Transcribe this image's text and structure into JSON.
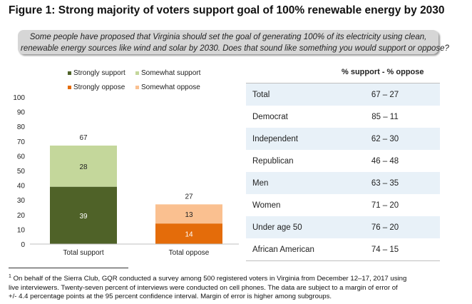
{
  "figure": {
    "title": "Figure 1: Strong majority of voters support goal of 100% renewable energy by 2030"
  },
  "question": {
    "line1": "Some people have proposed that Virginia should set the goal of generating 100% of its electricity using clean,",
    "line2": "renewable energy sources like wind and solar by 2030. Does that sound like something you would support or oppose?"
  },
  "colors": {
    "strongly_support": "#4f6228",
    "somewhat_support": "#c4d79b",
    "strongly_oppose": "#e46c0a",
    "somewhat_oppose": "#fac090"
  },
  "chart_data": {
    "type": "bar",
    "stacked": true,
    "categories": [
      "Total support",
      "Total oppose"
    ],
    "series": [
      {
        "name": "Strongly support",
        "values": [
          39,
          null
        ]
      },
      {
        "name": "Somewhat support",
        "values": [
          28,
          null
        ]
      },
      {
        "name": "Strongly oppose",
        "values": [
          null,
          14
        ]
      },
      {
        "name": "Somewhat oppose",
        "values": [
          null,
          13
        ]
      }
    ],
    "totals": [
      67,
      27
    ],
    "ylim": [
      0,
      100
    ],
    "yticks": [
      0,
      10,
      20,
      30,
      40,
      50,
      60,
      70,
      80,
      90,
      100
    ],
    "grid": false,
    "legend_position": "top"
  },
  "table": {
    "header": "% support - % oppose",
    "rows": [
      {
        "group": "Total",
        "value": "67 – 27"
      },
      {
        "group": "Democrat",
        "value": "85 – 11"
      },
      {
        "group": "Independent",
        "value": "62 – 30"
      },
      {
        "group": "Republican",
        "value": "46 – 48"
      },
      {
        "group": "Men",
        "value": "63 – 35"
      },
      {
        "group": "Women",
        "value": "71 – 20"
      },
      {
        "group": "Under age 50",
        "value": "76 – 20"
      },
      {
        "group": "African American",
        "value": "74 – 15"
      }
    ]
  },
  "footnote": {
    "marker": "1",
    "line1": " On behalf of the Sierra Club, GQR conducted a survey among 500 registered voters in Virginia from December 12–17, 2017 using",
    "line2": "live interviewers. Twenty-seven percent of interviews were conducted on cell phones. The data are subject to a margin of error of",
    "line3": "+/- 4.4 percentage points at the 95 percent confidence interval. Margin of error is higher among subgroups."
  }
}
